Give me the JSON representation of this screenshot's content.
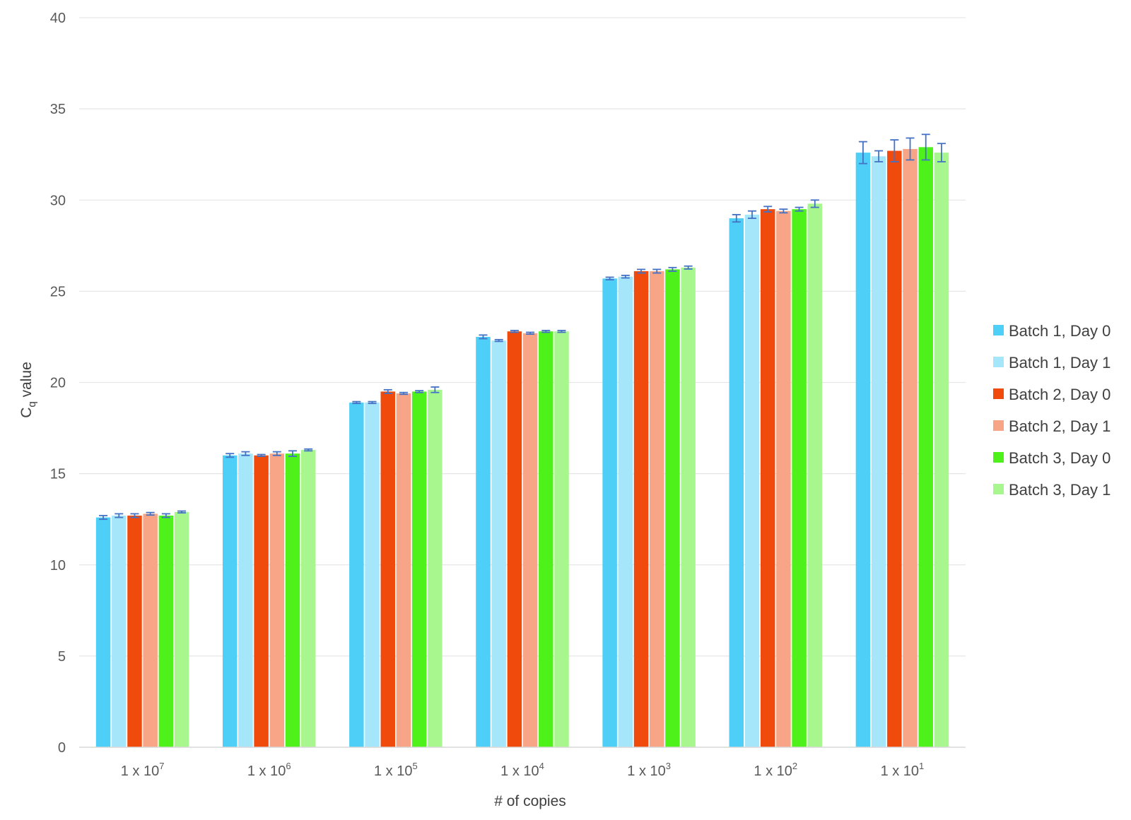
{
  "chart_data": {
    "type": "bar",
    "title": "",
    "xlabel": "# of copies",
    "ylabel": "C",
    "ylabel_subscript": "q",
    "ylabel_suffix": " value",
    "ylim": [
      0,
      40
    ],
    "yticks": [
      0,
      5,
      10,
      15,
      20,
      25,
      30,
      35,
      40
    ],
    "grid": true,
    "legend_position": "right",
    "error_bars": true,
    "categories": [
      {
        "base": "1 x 10",
        "exp": "7"
      },
      {
        "base": "1 x 10",
        "exp": "6"
      },
      {
        "base": "1 x 10",
        "exp": "5"
      },
      {
        "base": "1 x 10",
        "exp": "4"
      },
      {
        "base": "1 x 10",
        "exp": "3"
      },
      {
        "base": "1 x 10",
        "exp": "2"
      },
      {
        "base": "1 x 10",
        "exp": "1"
      }
    ],
    "series": [
      {
        "name": "Batch 1, Day 0",
        "color": "#4dcff7",
        "values": [
          12.6,
          16.0,
          18.9,
          22.5,
          25.7,
          29.0,
          32.6
        ],
        "errors": [
          0.1,
          0.1,
          0.05,
          0.1,
          0.07,
          0.2,
          0.6
        ]
      },
      {
        "name": "Batch 1, Day 1",
        "color": "#a6e6fb",
        "values": [
          12.7,
          16.1,
          18.9,
          22.3,
          25.8,
          29.2,
          32.4
        ],
        "errors": [
          0.1,
          0.1,
          0.05,
          0.05,
          0.07,
          0.2,
          0.3
        ]
      },
      {
        "name": "Batch 2, Day 0",
        "color": "#f04a0d",
        "values": [
          12.7,
          16.0,
          19.5,
          22.8,
          26.1,
          29.5,
          32.7
        ],
        "errors": [
          0.1,
          0.05,
          0.1,
          0.05,
          0.1,
          0.15,
          0.6
        ]
      },
      {
        "name": "Batch 2, Day 1",
        "color": "#f7a586",
        "values": [
          12.8,
          16.1,
          19.4,
          22.7,
          26.1,
          29.4,
          32.8
        ],
        "errors": [
          0.07,
          0.1,
          0.05,
          0.05,
          0.1,
          0.1,
          0.6
        ]
      },
      {
        "name": "Batch 3, Day 0",
        "color": "#4ef21a",
        "values": [
          12.7,
          16.1,
          19.5,
          22.8,
          26.2,
          29.5,
          32.9
        ],
        "errors": [
          0.1,
          0.15,
          0.05,
          0.05,
          0.1,
          0.1,
          0.7
        ]
      },
      {
        "name": "Batch 3, Day 1",
        "color": "#a8f78e",
        "values": [
          12.9,
          16.3,
          19.6,
          22.8,
          26.3,
          29.8,
          32.6
        ],
        "errors": [
          0.05,
          0.05,
          0.15,
          0.05,
          0.08,
          0.2,
          0.5
        ]
      }
    ]
  }
}
